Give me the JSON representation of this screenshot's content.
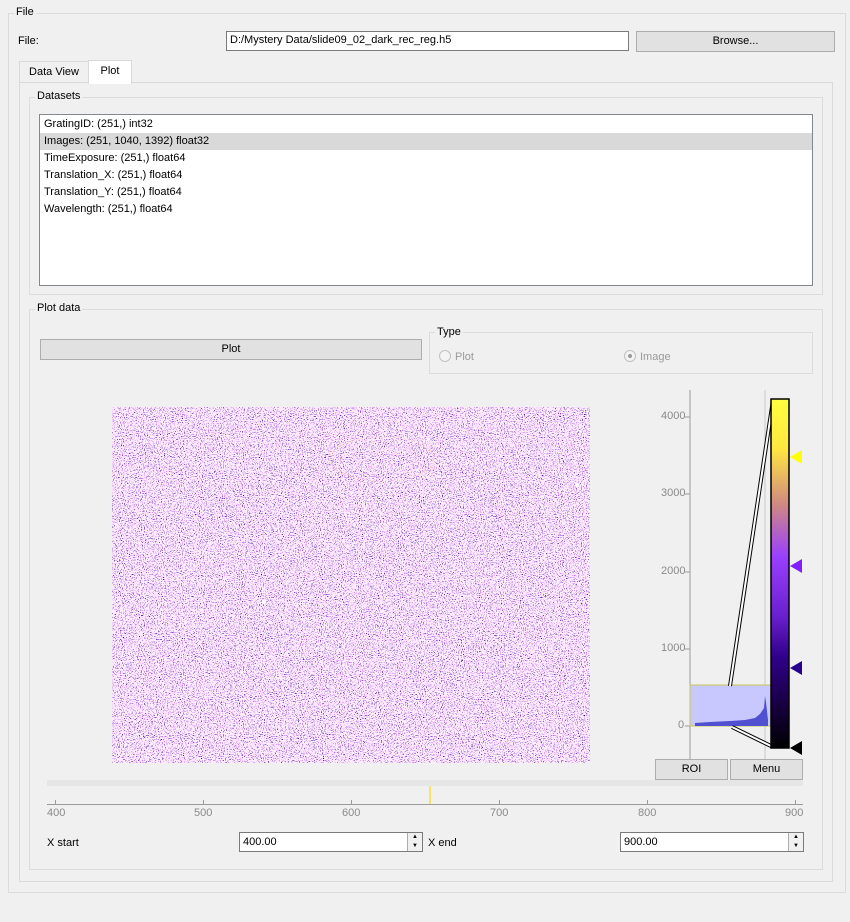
{
  "file_group": {
    "title": "File",
    "file_label": "File:",
    "file_path": "D:/Mystery Data/slide09_02_dark_rec_reg.h5",
    "browse_label": "Browse..."
  },
  "tabs": [
    {
      "label": "Data View",
      "active": false
    },
    {
      "label": "Plot",
      "active": true
    }
  ],
  "datasets": {
    "title": "Datasets",
    "items": [
      {
        "label": "GratingID: (251,) int32",
        "selected": false
      },
      {
        "label": "Images: (251, 1040, 1392) float32",
        "selected": true
      },
      {
        "label": "TimeExposure: (251,) float64",
        "selected": false
      },
      {
        "label": "Translation_X: (251,) float64",
        "selected": false
      },
      {
        "label": "Translation_Y: (251,) float64",
        "selected": false
      },
      {
        "label": "Wavelength: (251,) float64",
        "selected": false
      }
    ]
  },
  "plot_data": {
    "title": "Plot data",
    "plot_button": "Plot",
    "type_title": "Type",
    "type_options": [
      {
        "label": "Plot",
        "checked": false
      },
      {
        "label": "Image",
        "checked": true
      }
    ]
  },
  "histogram": {
    "axis_ticks": [
      "4000",
      "3000",
      "2000",
      "1000",
      "0"
    ],
    "roi_label": "ROI",
    "menu_label": "Menu",
    "colormap_handles": [
      "#ffff00",
      "#8020ff",
      "#28008c",
      "#000000"
    ]
  },
  "slider": {
    "ticks": [
      "400",
      "500",
      "600",
      "700",
      "800",
      "900"
    ],
    "current_value": 650
  },
  "range": {
    "x_start_label": "X start",
    "x_start_value": "400.00",
    "x_end_label": "X end",
    "x_end_value": "900.00"
  },
  "colors": {
    "image_background": "#2a0d86",
    "histogram_region": "#c8c8ff",
    "histogram_fill": "#5050d0"
  }
}
